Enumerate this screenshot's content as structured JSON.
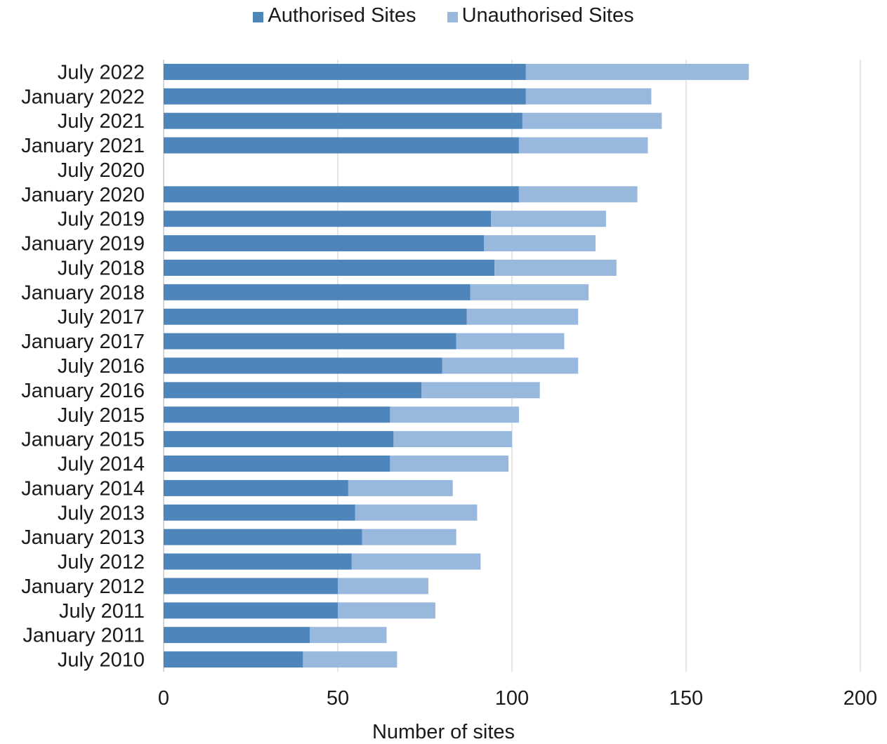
{
  "chart_data": {
    "type": "bar",
    "orientation": "horizontal",
    "stacked": true,
    "title": "",
    "xlabel": "Number of sites",
    "ylabel": "",
    "xlim": [
      0,
      200
    ],
    "xticks": [
      0,
      50,
      100,
      150,
      200
    ],
    "grid": "vertical",
    "legend_position": "top-center",
    "categories": [
      "July 2022",
      "January 2022",
      "July 2021",
      "January 2021",
      "July 2020",
      "January 2020",
      "July 2019",
      "January 2019",
      "July 2018",
      "January 2018",
      "July 2017",
      "January 2017",
      "July 2016",
      "January 2016",
      "July 2015",
      "January 2015",
      "July 2014",
      "January 2014",
      "July 2013",
      "January 2013",
      "July 2012",
      "January 2012",
      "July 2011",
      "January 2011",
      "July 2010"
    ],
    "series": [
      {
        "name": "Authorised Sites",
        "color": "#4e86bb",
        "values": [
          104,
          104,
          103,
          102,
          null,
          102,
          94,
          92,
          95,
          88,
          87,
          84,
          80,
          74,
          65,
          66,
          65,
          53,
          55,
          57,
          54,
          50,
          50,
          42,
          40
        ]
      },
      {
        "name": "Unauthorised Sites",
        "color": "#98b9dd",
        "values": [
          64,
          36,
          40,
          37,
          null,
          34,
          33,
          32,
          35,
          34,
          32,
          31,
          39,
          34,
          37,
          34,
          34,
          30,
          35,
          27,
          37,
          26,
          28,
          22,
          27
        ]
      }
    ]
  }
}
